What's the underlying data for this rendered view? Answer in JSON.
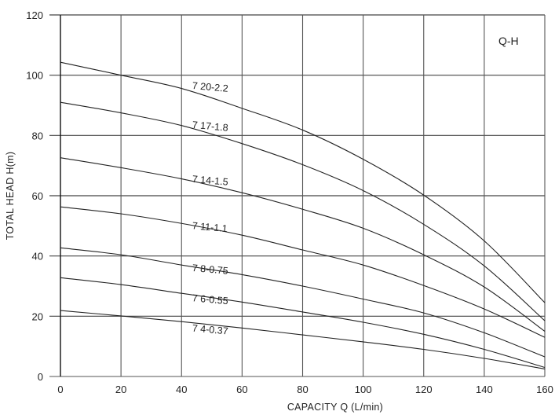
{
  "chart_data": {
    "type": "line",
    "title": "Q-H",
    "xlabel": "CAPACITY  Q (L/min)",
    "ylabel": "TOTAL HEAD  H(m)",
    "xlim": [
      0,
      160
    ],
    "ylim": [
      0,
      120
    ],
    "xticks": [
      0,
      20,
      40,
      60,
      80,
      100,
      120,
      140,
      160
    ],
    "yticks": [
      0,
      20,
      40,
      60,
      80,
      100,
      120
    ],
    "grid": true,
    "legend": "inline labels on curves",
    "x": [
      0,
      20,
      40,
      60,
      80,
      100,
      120,
      140,
      160
    ],
    "series": [
      {
        "name": "7 20-2.2",
        "values": [
          104.3,
          100.0,
          95.6,
          89.0,
          81.8,
          72.1,
          60.2,
          45.0,
          24.5
        ]
      },
      {
        "name": "7 17-1.8",
        "values": [
          91.0,
          87.5,
          83.3,
          77.3,
          70.3,
          61.7,
          50.5,
          36.7,
          18.5
        ]
      },
      {
        "name": "7 14-1.5",
        "values": [
          72.6,
          69.3,
          65.6,
          61.0,
          55.5,
          49.2,
          40.4,
          29.7,
          15.0
        ]
      },
      {
        "name": "7 11-1.1",
        "values": [
          56.3,
          54.0,
          50.8,
          46.9,
          42.0,
          37.0,
          30.2,
          22.4,
          13.0
        ]
      },
      {
        "name": "7 8-0.75",
        "values": [
          42.7,
          40.4,
          37.0,
          33.8,
          30.0,
          25.7,
          21.1,
          14.5,
          6.5
        ]
      },
      {
        "name": "7 6-0.55",
        "values": [
          32.8,
          30.5,
          27.6,
          24.7,
          21.4,
          18.0,
          14.0,
          9.0,
          3.0
        ]
      },
      {
        "name": "7 4-0.37",
        "values": [
          21.9,
          20.1,
          18.2,
          16.1,
          13.8,
          11.5,
          9.0,
          6.0,
          2.5
        ]
      }
    ],
    "label_positions": [
      {
        "x": 24,
        "y": 95.5
      },
      {
        "x": 24,
        "y": 82.5
      },
      {
        "x": 24,
        "y": 64.5
      },
      {
        "x": 24,
        "y": 49
      },
      {
        "x": 24,
        "y": 35
      },
      {
        "x": 24,
        "y": 25
      },
      {
        "x": 24,
        "y": 15
      }
    ]
  },
  "axis_labels": {
    "x": "CAPACITY  Q (L/min)",
    "y": "TOTAL HEAD  H(m)"
  },
  "title_text": "Q-H"
}
